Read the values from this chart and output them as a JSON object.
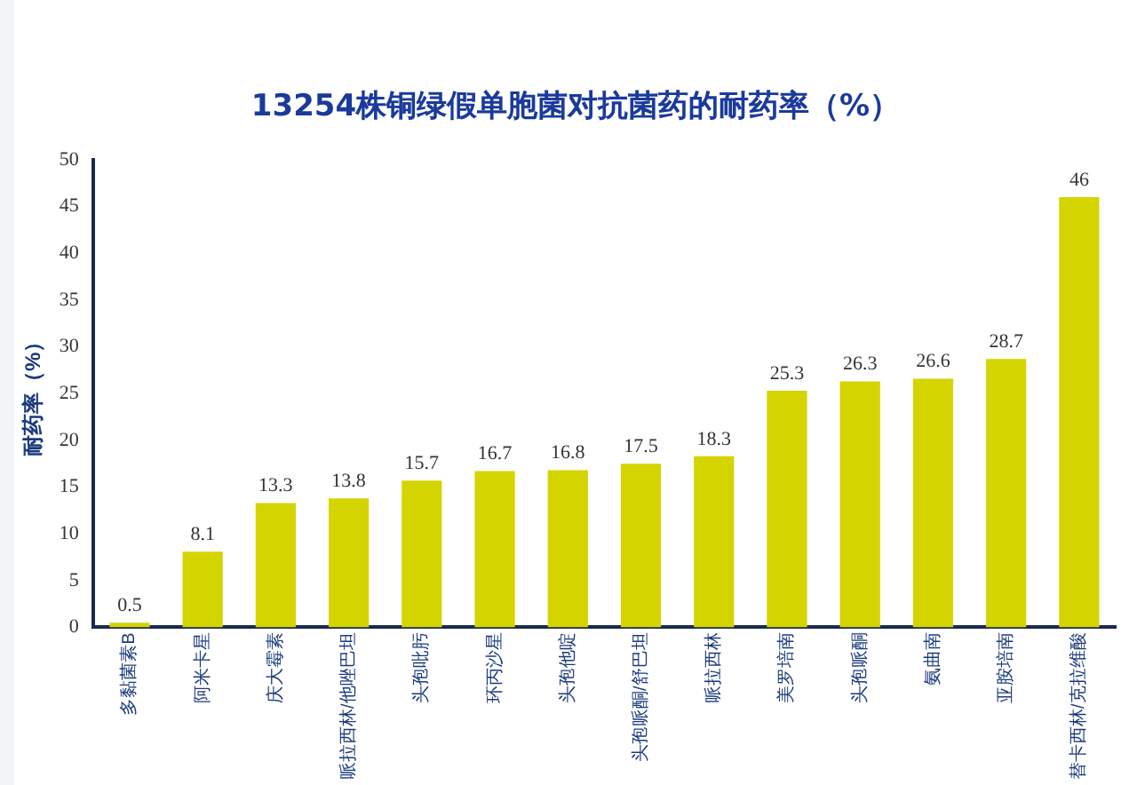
{
  "chart_data": {
    "type": "bar",
    "title": "13254株铜绿假单胞菌对抗菌药的耐药率（%）",
    "ylabel": "耐药率（%）",
    "categories": [
      "多黏菌素B",
      "阿米卡星",
      "庆大霉素",
      "哌拉西林/他唑巴坦",
      "头孢吡肟",
      "环丙沙星",
      "头孢他啶",
      "头孢哌酮/舒巴坦",
      "哌拉西林",
      "美罗培南",
      "头孢哌酮",
      "氨曲南",
      "亚胺培南",
      "替卡西林/克拉维酸"
    ],
    "values": [
      0.5,
      8.1,
      13.3,
      13.8,
      15.7,
      16.7,
      16.8,
      17.5,
      18.3,
      25.3,
      26.3,
      26.6,
      28.7,
      46
    ],
    "color": "#d4d400",
    "ylim": [
      0,
      50
    ],
    "yticks": [
      0,
      5,
      10,
      15,
      20,
      25,
      30,
      35,
      40,
      45,
      50
    ],
    "grid": false,
    "legend": false,
    "data_labels": true
  }
}
